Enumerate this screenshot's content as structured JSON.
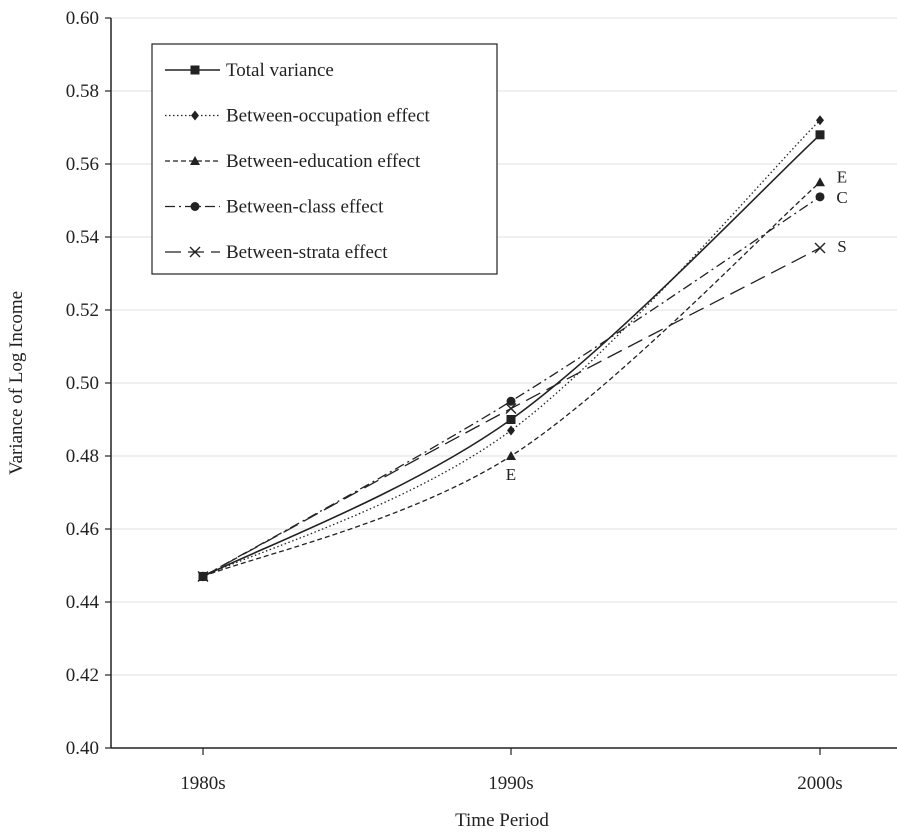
{
  "chart_data": {
    "type": "line",
    "title": "",
    "xlabel": "Time Period",
    "ylabel": "Variance of Log Income",
    "categories": [
      "1980s",
      "1990s",
      "2000s"
    ],
    "ylim": [
      0.4,
      0.6
    ],
    "yticks": [
      "0.40",
      "0.42",
      "0.44",
      "0.46",
      "0.48",
      "0.50",
      "0.52",
      "0.54",
      "0.56",
      "0.58",
      "0.60"
    ],
    "grid": "horizontal",
    "legend_position": "top-left",
    "series": [
      {
        "name": "Total variance",
        "values": [
          0.447,
          0.49,
          0.568
        ],
        "marker": "square",
        "dash": "solid",
        "color": "#222222"
      },
      {
        "name": "Between-occupation effect",
        "values": [
          0.447,
          0.487,
          0.572
        ],
        "marker": "diamond",
        "dash": "dotted",
        "color": "#222222"
      },
      {
        "name": "Between-education effect",
        "values": [
          0.447,
          0.48,
          0.555
        ],
        "marker": "triangle",
        "dash": "dashed",
        "color": "#222222"
      },
      {
        "name": "Between-class effect",
        "values": [
          0.447,
          0.495,
          0.551
        ],
        "marker": "circle",
        "dash": "dashdot",
        "color": "#222222"
      },
      {
        "name": "Between-strata effect",
        "values": [
          0.447,
          0.493,
          0.537
        ],
        "marker": "x",
        "dash": "longdash",
        "color": "#222222"
      }
    ],
    "annotations": [
      {
        "text": "E",
        "series": 2,
        "point": 1
      },
      {
        "text": "E",
        "series": 2,
        "point": 2
      },
      {
        "text": "C",
        "series": 3,
        "point": 2
      },
      {
        "text": "S",
        "series": 4,
        "point": 2
      }
    ]
  }
}
